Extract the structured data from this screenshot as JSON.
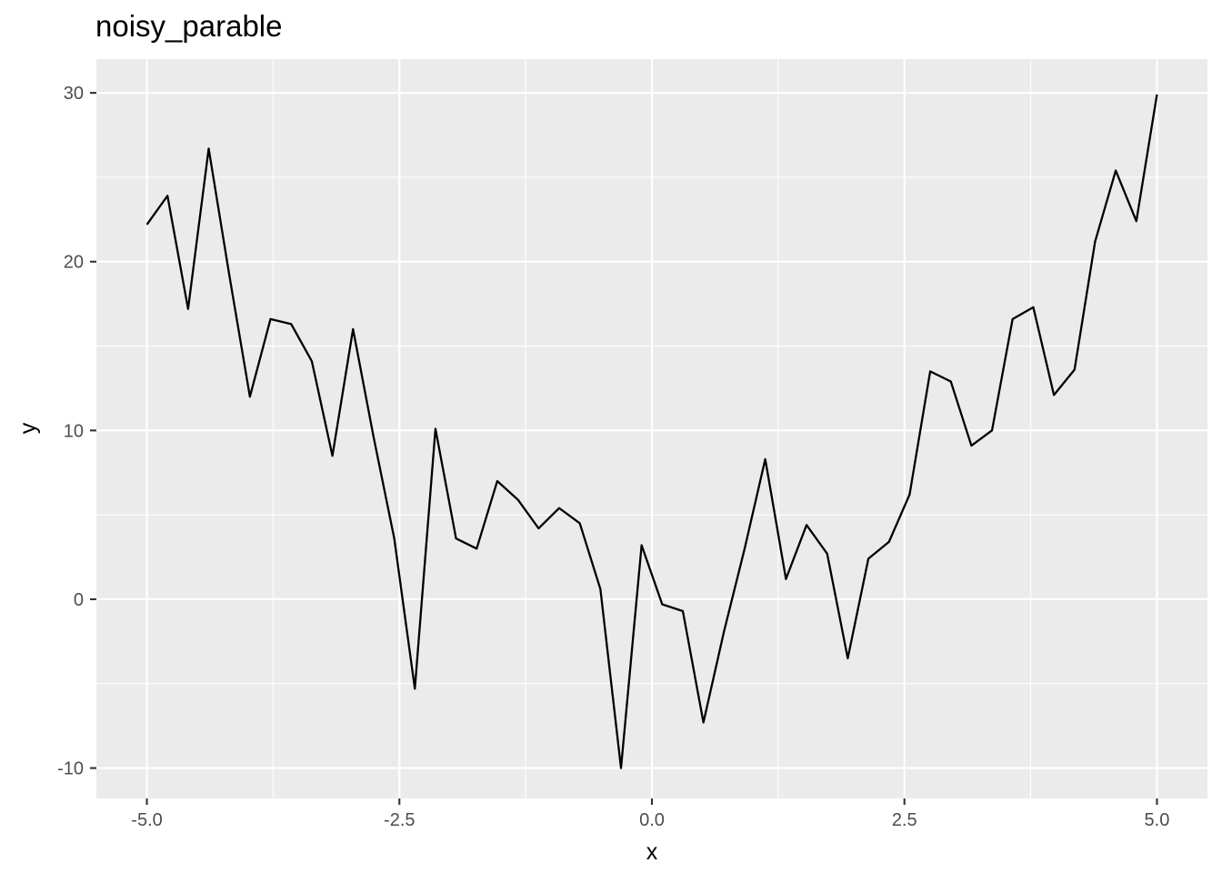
{
  "chart_data": {
    "type": "line",
    "title": "noisy_parable",
    "xlabel": "x",
    "ylabel": "y",
    "xlim": [
      -5.5,
      5.5
    ],
    "ylim": [
      -11.8,
      32.0
    ],
    "x_ticks": [
      -5.0,
      -2.5,
      0.0,
      2.5,
      5.0
    ],
    "x_tick_labels": [
      "-5.0",
      "-2.5",
      "0.0",
      "2.5",
      "5.0"
    ],
    "y_ticks": [
      -10,
      0,
      10,
      20,
      30
    ],
    "y_tick_labels": [
      "-10",
      "0",
      "10",
      "20",
      "30"
    ],
    "grid": true,
    "legend": "none",
    "colors": {
      "panel": "#ebebeb",
      "grid": "#ffffff",
      "line": "#000000",
      "tick_text": "#4d4d4d"
    },
    "series": [
      {
        "x": [
          -5.0,
          -4.796,
          -4.592,
          -4.388,
          -4.184,
          -3.98,
          -3.776,
          -3.571,
          -3.367,
          -3.163,
          -2.959,
          -2.755,
          -2.551,
          -2.347,
          -2.143,
          -1.939,
          -1.735,
          -1.531,
          -1.327,
          -1.122,
          -0.918,
          -0.714,
          -0.51,
          -0.306,
          -0.102,
          0.102,
          0.306,
          0.51,
          0.714,
          0.918,
          1.122,
          1.327,
          1.531,
          1.735,
          1.939,
          2.143,
          2.347,
          2.551,
          2.755,
          2.959,
          3.163,
          3.367,
          3.571,
          3.776,
          3.98,
          4.184,
          4.388,
          4.592,
          4.796,
          5.0
        ],
        "y": [
          22.2,
          23.9,
          17.2,
          26.7,
          19.2,
          12.0,
          16.6,
          16.3,
          14.1,
          8.5,
          16.0,
          9.6,
          3.6,
          -5.3,
          10.1,
          3.6,
          3.0,
          7.0,
          5.9,
          4.2,
          5.4,
          4.5,
          0.6,
          -10.0,
          3.2,
          -0.3,
          -0.7,
          -7.3,
          -1.9,
          3.0,
          8.3,
          1.2,
          4.4,
          2.7,
          -3.5,
          2.4,
          3.4,
          6.2,
          13.5,
          12.9,
          9.1,
          10.0,
          16.6,
          17.3,
          12.1,
          13.6,
          21.2,
          25.4,
          22.4,
          29.9
        ]
      }
    ]
  }
}
